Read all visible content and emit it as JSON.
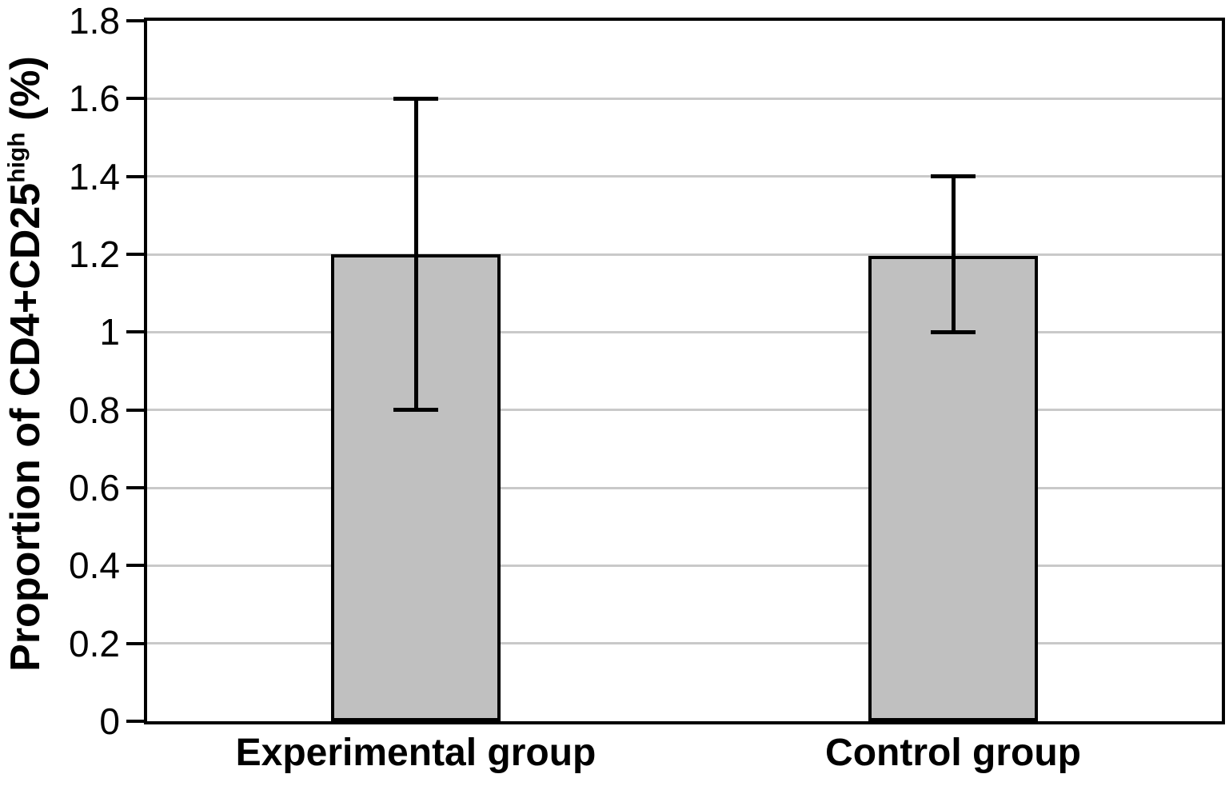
{
  "chart_data": {
    "type": "bar",
    "title": "",
    "categories": [
      "Experimental group",
      "Control group"
    ],
    "values": [
      1.2,
      1.195
    ],
    "error_bars": {
      "lower": [
        0.8,
        1.0
      ],
      "upper": [
        1.6,
        1.4
      ]
    },
    "xlabel": "",
    "ylabel": "Proportion of CD4+CD25high (%)",
    "ylabel_parts": {
      "main": "Proportion of CD4+CD25",
      "superscript": "high",
      "tail": " (%)"
    },
    "ylim": [
      0,
      1.8
    ],
    "yticks": [
      {
        "value": 0,
        "label": "0"
      },
      {
        "value": 0.2,
        "label": "0.2"
      },
      {
        "value": 0.4,
        "label": "0.4"
      },
      {
        "value": 0.6,
        "label": "0.6"
      },
      {
        "value": 0.8,
        "label": "0.8"
      },
      {
        "value": 1,
        "label": "1"
      },
      {
        "value": 1.2,
        "label": "1.2"
      },
      {
        "value": 1.4,
        "label": "1.4"
      },
      {
        "value": 1.6,
        "label": "1.6"
      },
      {
        "value": 1.8,
        "label": "1.8"
      }
    ],
    "grid": "horizontal",
    "legend": "none",
    "colors": {
      "bar_fill": "#c0c0c0",
      "bar_border": "#000000",
      "error_bar": "#000000",
      "gridline": "#c9c9c9",
      "axis": "#000000",
      "text": "#000000",
      "background": "#ffffff"
    }
  }
}
